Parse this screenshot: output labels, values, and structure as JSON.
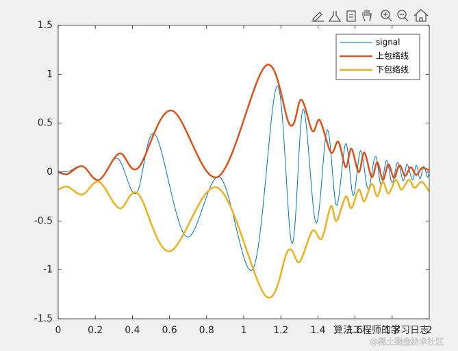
{
  "chart_data": {
    "type": "line",
    "xlim": [
      0,
      2
    ],
    "ylim": [
      -1.5,
      1.5
    ],
    "xticks": [
      0,
      0.2,
      0.4,
      0.6,
      0.8,
      1,
      1.2,
      1.4,
      1.6,
      1.8,
      2
    ],
    "yticks": [
      -1.5,
      -1,
      -0.5,
      0,
      0.5,
      1,
      1.5
    ],
    "grid": false,
    "legend_position": "northeast",
    "series": [
      {
        "name": "signal",
        "color": "#0072bd",
        "width": 1,
        "x": [
          0,
          0.06,
          0.13,
          0.22,
          0.32,
          0.42,
          0.52,
          0.69,
          0.87,
          1.05,
          1.18,
          1.26,
          1.32,
          1.39,
          1.45,
          1.5,
          1.55,
          1.59,
          1.63,
          1.67,
          1.71,
          1.74,
          1.77,
          1.8,
          1.83,
          1.86,
          1.88,
          1.91,
          1.93,
          1.95,
          1.97,
          1.99,
          2
        ],
        "values": [
          0,
          0.01,
          0.06,
          -0.08,
          0.14,
          -0.22,
          0.39,
          -0.66,
          -0.05,
          -0.99,
          0.88,
          -0.73,
          0.64,
          -0.52,
          0.43,
          -0.34,
          0.29,
          -0.24,
          0.22,
          -0.17,
          0.16,
          -0.13,
          0.12,
          -0.11,
          0.1,
          -0.09,
          0.08,
          -0.08,
          0.07,
          -0.07,
          0.06,
          -0.05,
          0
        ]
      },
      {
        "name": "上包络线",
        "color": "#d95319",
        "width": 2.5,
        "x": [
          0,
          0.05,
          0.13,
          0.22,
          0.33,
          0.43,
          0.61,
          0.86,
          1.12,
          1.25,
          1.31,
          1.37,
          1.41,
          1.47,
          1.51,
          1.55,
          1.58,
          1.62,
          1.65,
          1.69,
          1.72,
          1.75,
          1.78,
          1.81,
          1.84,
          1.87,
          1.9,
          1.93,
          1.96,
          2
        ],
        "values": [
          0,
          -0.02,
          0.06,
          -0.08,
          0.19,
          0.04,
          0.63,
          -0.05,
          1.09,
          0.48,
          0.74,
          0.42,
          0.53,
          0.2,
          0.31,
          0.05,
          0.24,
          0.0,
          0.2,
          -0.05,
          0.1,
          -0.08,
          0.08,
          -0.06,
          0.07,
          -0.04,
          0.05,
          -0.03,
          0.04,
          0.02
        ]
      },
      {
        "name": "下包络线",
        "color": "#edb120",
        "width": 2.5,
        "x": [
          0,
          0.05,
          0.13,
          0.22,
          0.33,
          0.43,
          0.6,
          0.86,
          1.12,
          1.24,
          1.3,
          1.37,
          1.42,
          1.47,
          1.5,
          1.55,
          1.58,
          1.62,
          1.65,
          1.69,
          1.72,
          1.75,
          1.78,
          1.82,
          1.85,
          1.89,
          1.92,
          1.96,
          2
        ],
        "values": [
          -0.18,
          -0.15,
          -0.23,
          -0.1,
          -0.37,
          -0.22,
          -0.81,
          -0.16,
          -1.27,
          -0.8,
          -0.92,
          -0.6,
          -0.68,
          -0.35,
          -0.5,
          -0.25,
          -0.37,
          -0.18,
          -0.3,
          -0.12,
          -0.25,
          -0.1,
          -0.22,
          -0.08,
          -0.18,
          -0.08,
          -0.16,
          -0.1,
          -0.2
        ]
      }
    ],
    "annotations": [
      "算法工程师的学习日志",
      "@稀土掘金技术社区"
    ]
  }
}
